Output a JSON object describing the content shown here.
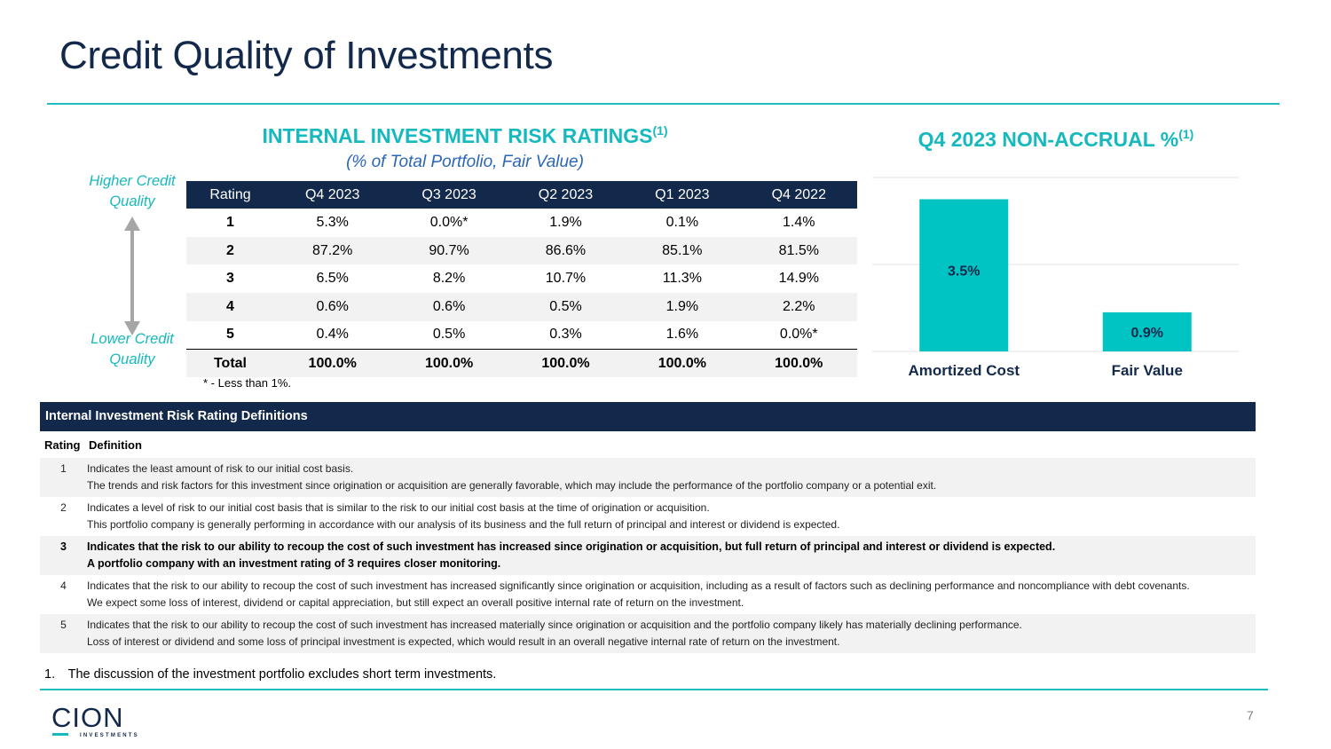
{
  "title": "Credit Quality of Investments",
  "risk_ratings": {
    "heading": "INTERNAL INVESTMENT RISK RATINGS",
    "heading_sup": "(1)",
    "subheading": "(% of Total Portfolio, Fair Value)",
    "higher_label": "Higher Credit Quality",
    "lower_label": "Lower Credit Quality",
    "columns": [
      "Rating",
      "Q4 2023",
      "Q3 2023",
      "Q2 2023",
      "Q1 2023",
      "Q4 2022"
    ],
    "rows": [
      {
        "rating": "1",
        "values": [
          "5.3%",
          "0.0%*",
          "1.9%",
          "0.1%",
          "1.4%"
        ]
      },
      {
        "rating": "2",
        "values": [
          "87.2%",
          "90.7%",
          "86.6%",
          "85.1%",
          "81.5%"
        ]
      },
      {
        "rating": "3",
        "values": [
          "6.5%",
          "8.2%",
          "10.7%",
          "11.3%",
          "14.9%"
        ]
      },
      {
        "rating": "4",
        "values": [
          "0.6%",
          "0.6%",
          "0.5%",
          "1.9%",
          "2.2%"
        ]
      },
      {
        "rating": "5",
        "values": [
          "0.4%",
          "0.5%",
          "0.3%",
          "1.6%",
          "0.0%*"
        ]
      }
    ],
    "total": {
      "rating": "Total",
      "values": [
        "100.0%",
        "100.0%",
        "100.0%",
        "100.0%",
        "100.0%"
      ]
    },
    "footnote": "* - Less than 1%."
  },
  "non_accrual": {
    "heading": "Q4 2023 NON-ACCRUAL %",
    "heading_sup": "(1)"
  },
  "chart_data": {
    "type": "bar",
    "categories": [
      "Amortized Cost",
      "Fair Value"
    ],
    "values": [
      3.5,
      0.9
    ],
    "value_labels": [
      "3.5%",
      "0.9%"
    ],
    "title": "Q4 2023 NON-ACCRUAL %",
    "ylim": [
      0,
      4.0
    ],
    "grid": true,
    "bar_color": "#00c3c3"
  },
  "definitions": {
    "header": "Internal Investment Risk Rating Definitions",
    "col_rating": "Rating",
    "col_definition": "Definition",
    "items": [
      {
        "num": "1",
        "lines": [
          "Indicates the least amount of risk to our initial cost basis.",
          "The trends and risk factors for this investment since origination or acquisition are generally favorable, which may include the performance of the portfolio company or a potential exit."
        ]
      },
      {
        "num": "2",
        "lines": [
          "Indicates a level of risk to our initial cost basis that is similar to the risk to our initial cost basis at the time of origination or acquisition.",
          "This portfolio company is generally performing in accordance with our analysis of its business and the full return of principal and interest or dividend is expected."
        ]
      },
      {
        "num": "3",
        "lines": [
          "Indicates that the risk to our ability to recoup the cost of such investment has increased since origination or acquisition, but full return of principal and interest or dividend is expected.",
          "A portfolio company with an investment rating of 3 requires closer monitoring."
        ]
      },
      {
        "num": "4",
        "lines": [
          "Indicates that the risk to our ability to recoup the cost of such investment has increased significantly since origination or acquisition, including as a result of factors such as declining performance and noncompliance with debt covenants.",
          "We expect some loss of interest, dividend or capital appreciation, but still expect an overall positive internal rate of return on the investment."
        ]
      },
      {
        "num": "5",
        "lines": [
          "Indicates that the risk to our ability to recoup the cost of such investment has increased materially since origination or acquisition and the portfolio company likely has materially declining performance.",
          "Loss of interest or dividend and some loss of principal investment is expected, which would result in an overall negative internal rate of return on the investment."
        ]
      }
    ]
  },
  "footnote1": "1. The discussion of the investment portfolio excludes short term investments.",
  "logo": {
    "word": "CION",
    "tagline": "INVESTMENTS"
  },
  "page_number": "7",
  "colors": {
    "navy": "#13294b",
    "teal": "#16b9bd",
    "bar": "#00c3c3",
    "blue_italic": "#2b66b4"
  }
}
